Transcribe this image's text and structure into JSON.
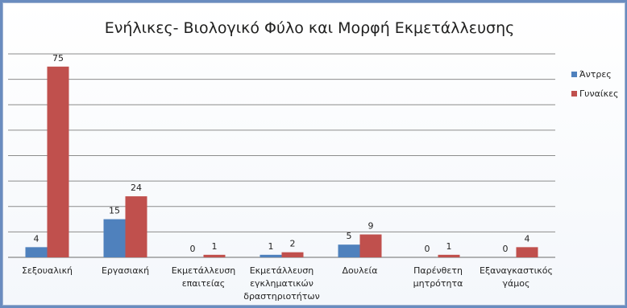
{
  "chart_data": {
    "type": "bar",
    "title": "Ενήλικες- Βιολογικό Φύλο και Μορφή Εκμετάλλευσης",
    "xlabel": "",
    "ylabel": "",
    "categories": [
      [
        "Σεξουαλική"
      ],
      [
        "Εργασιακή"
      ],
      [
        "Εκμετάλλευση",
        "επαιτείας"
      ],
      [
        "Εκμετάλλευση",
        "εγκληματικών",
        "δραστηριοτήτων"
      ],
      [
        "Δουλεία"
      ],
      [
        "Παρένθετη",
        "μητρότητα"
      ],
      [
        "Εξαναγκαστικός",
        "γάμος"
      ]
    ],
    "series": [
      {
        "name": "Άντρες",
        "color": "#4f81bd",
        "values": [
          4,
          15,
          0,
          1,
          5,
          0,
          0
        ]
      },
      {
        "name": "Γυναίκες",
        "color": "#c0504d",
        "values": [
          75,
          24,
          1,
          2,
          9,
          1,
          4
        ]
      }
    ],
    "ylim": [
      0,
      80
    ],
    "ystep": 10,
    "grid": true,
    "legend": "right",
    "show_data_labels": true
  }
}
